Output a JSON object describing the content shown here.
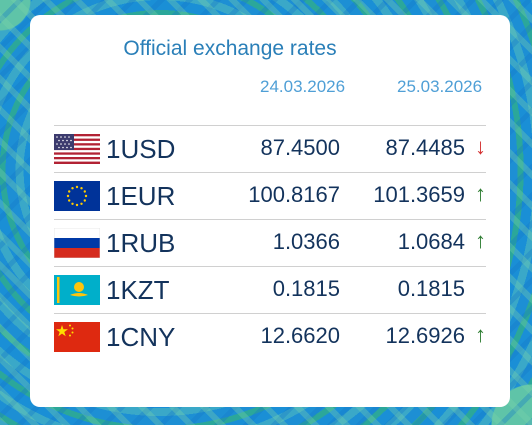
{
  "widget": {
    "title": "Official exchange rates",
    "date_prev": "24.03.2026",
    "date_curr": "25.03.2026"
  },
  "rates": [
    {
      "code": "1USD",
      "flag": "usa-flag-icon",
      "prev": "87.4500",
      "curr": "87.4485",
      "trend": "↓",
      "trend_dir": "down"
    },
    {
      "code": "1EUR",
      "flag": "eu-flag-icon",
      "prev": "100.8167",
      "curr": "101.3659",
      "trend": "↑",
      "trend_dir": "up"
    },
    {
      "code": "1RUB",
      "flag": "russia-flag-icon",
      "prev": "1.0366",
      "curr": "1.0684",
      "trend": "↑",
      "trend_dir": "up"
    },
    {
      "code": "1KZT",
      "flag": "kazakhstan-flag-icon",
      "prev": "0.1815",
      "curr": "0.1815",
      "trend": "",
      "trend_dir": "none"
    },
    {
      "code": "1CNY",
      "flag": "china-flag-icon",
      "prev": "12.6620",
      "curr": "12.6926",
      "trend": "↑",
      "trend_dir": "up"
    }
  ],
  "colors": {
    "title": "#2a7fb8",
    "date": "#4f9fd6",
    "value": "#13335c",
    "trend_up": "#2e7d32",
    "trend_down": "#d32f2f"
  }
}
